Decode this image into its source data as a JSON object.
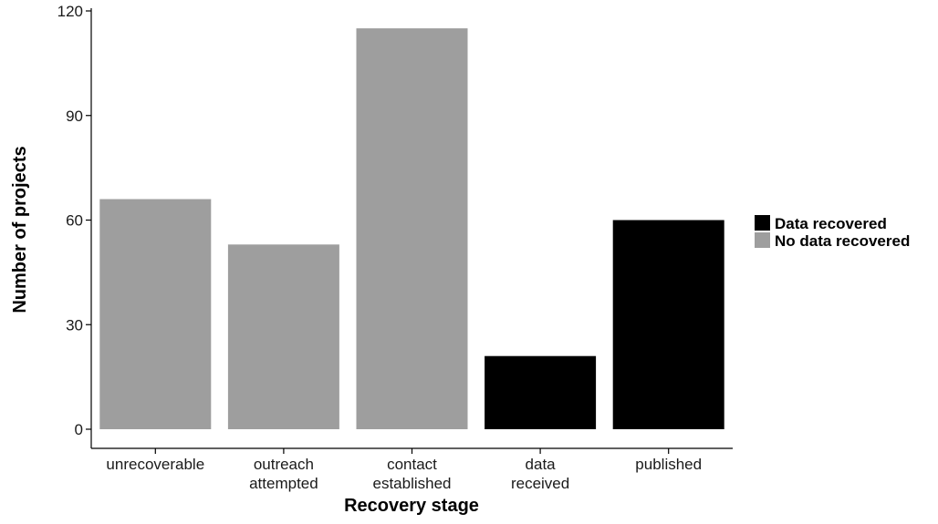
{
  "chart_data": {
    "type": "bar",
    "categories": [
      [
        "unrecoverable"
      ],
      [
        "outreach",
        "attempted"
      ],
      [
        "contact",
        "established"
      ],
      [
        "data",
        "received"
      ],
      [
        "published"
      ]
    ],
    "values": [
      66,
      53,
      115,
      21,
      60
    ],
    "groups": [
      "No data recovered",
      "No data recovered",
      "No data recovered",
      "Data recovered",
      "Data recovered"
    ],
    "xlabel": "Recovery stage",
    "ylabel": "Number of projects",
    "ylim": [
      0,
      120
    ],
    "yticks": [
      0,
      30,
      60,
      90,
      120
    ],
    "grid": false,
    "legend": {
      "placement": "right",
      "entries": [
        {
          "name": "Data recovered",
          "color": "#000000"
        },
        {
          "name": "No data recovered",
          "color": "#9e9e9e"
        }
      ]
    }
  }
}
